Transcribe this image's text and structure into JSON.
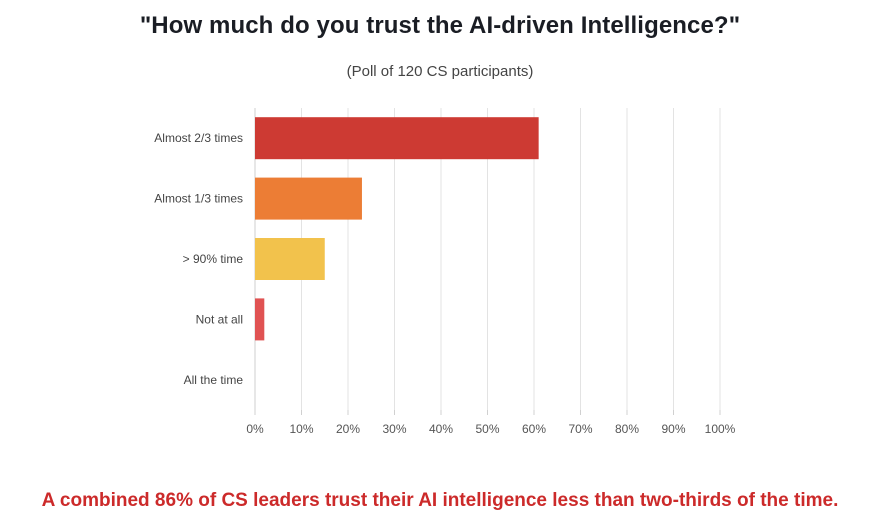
{
  "header": {
    "title": "\"How much do you trust the AI-driven Intelligence?\"",
    "subtitle": "(Poll of 120 CS participants)"
  },
  "footer": {
    "note": "A combined 86% of CS leaders trust their AI intelligence less than two-thirds of the time."
  },
  "chart_data": {
    "type": "bar",
    "orientation": "horizontal",
    "categories": [
      "Almost 2/3 times",
      "Almost 1/3 times",
      "> 90% time",
      "Not at all",
      "All the time"
    ],
    "values": [
      61,
      23,
      15,
      2,
      0
    ],
    "colors": [
      "#cd3a33",
      "#ec7d35",
      "#f2c24c",
      "#e05252",
      "#999999"
    ],
    "xlim": [
      0,
      100
    ],
    "xticks": [
      "0%",
      "10%",
      "20%",
      "30%",
      "40%",
      "50%",
      "60%",
      "70%",
      "80%",
      "90%",
      "100%"
    ],
    "grid": true,
    "legend": "none"
  }
}
